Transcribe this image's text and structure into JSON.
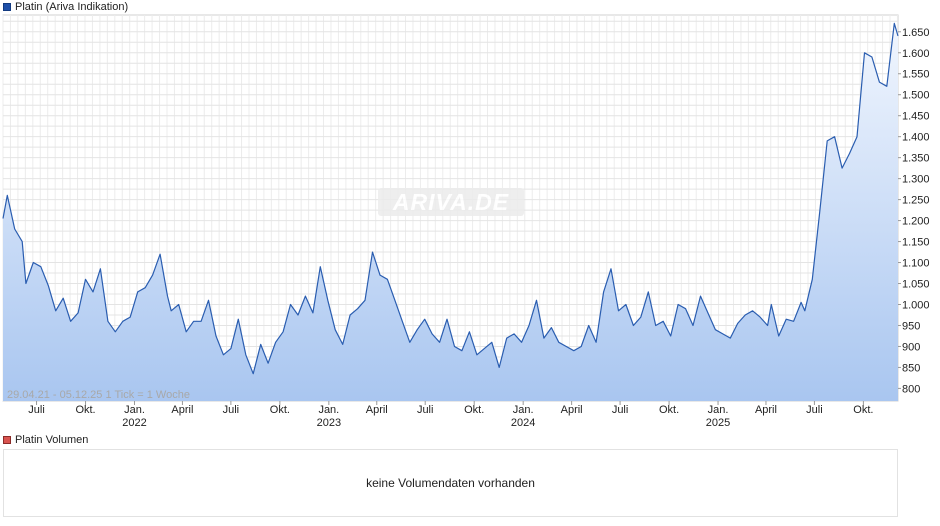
{
  "legend": {
    "price_label": "Platin (Ariva Indikation)",
    "price_color": "#1e4fa8",
    "volume_label": "Platin Volumen",
    "volume_color": "#d9534f"
  },
  "watermark": "ARIVA.DE",
  "range_note": "29.04.21 - 05.12.25     1 Tick = 1 Woche",
  "volume": {
    "message": "keine Volumendaten vorhanden"
  },
  "colors": {
    "line": "#2a5db0",
    "fill_top": "#f1f6fe",
    "fill_bottom": "#a9c6f0",
    "grid": "#dcdcdc"
  },
  "chart_data": {
    "type": "area",
    "title": "Platin (Ariva Indikation)",
    "xlabel": "",
    "ylabel": "",
    "x_range": [
      "2021-04-29",
      "2025-12-05"
    ],
    "ylim": [
      770,
      1690
    ],
    "yticks": [
      800,
      850,
      900,
      950,
      1000,
      1050,
      1100,
      1150,
      1200,
      1250,
      1300,
      1350,
      1400,
      1450,
      1500,
      1550,
      1600,
      1650
    ],
    "ytick_labels": [
      "800",
      "850",
      "900",
      "950",
      "1.000",
      "1.050",
      "1.100",
      "1.150",
      "1.200",
      "1.250",
      "1.300",
      "1.350",
      "1.400",
      "1.450",
      "1.500",
      "1.550",
      "1.600",
      "1.650"
    ],
    "xticks": [
      {
        "date": "2021-07-01",
        "label": "Juli",
        "year": ""
      },
      {
        "date": "2021-10-01",
        "label": "Okt.",
        "year": ""
      },
      {
        "date": "2022-01-01",
        "label": "Jan.",
        "year": "2022"
      },
      {
        "date": "2022-04-01",
        "label": "April",
        "year": ""
      },
      {
        "date": "2022-07-01",
        "label": "Juli",
        "year": ""
      },
      {
        "date": "2022-10-01",
        "label": "Okt.",
        "year": ""
      },
      {
        "date": "2023-01-01",
        "label": "Jan.",
        "year": "2023"
      },
      {
        "date": "2023-04-01",
        "label": "April",
        "year": ""
      },
      {
        "date": "2023-07-01",
        "label": "Juli",
        "year": ""
      },
      {
        "date": "2023-10-01",
        "label": "Okt.",
        "year": ""
      },
      {
        "date": "2024-01-01",
        "label": "Jan.",
        "year": "2024"
      },
      {
        "date": "2024-04-01",
        "label": "April",
        "year": ""
      },
      {
        "date": "2024-07-01",
        "label": "Juli",
        "year": ""
      },
      {
        "date": "2024-10-01",
        "label": "Okt.",
        "year": ""
      },
      {
        "date": "2025-01-01",
        "label": "Jan.",
        "year": "2025"
      },
      {
        "date": "2025-04-01",
        "label": "April",
        "year": ""
      },
      {
        "date": "2025-07-01",
        "label": "Juli",
        "year": ""
      },
      {
        "date": "2025-10-01",
        "label": "Okt.",
        "year": ""
      }
    ],
    "grid": true,
    "series": [
      {
        "name": "Platin (Ariva Indikation)",
        "x": [
          "2021-04-29",
          "2021-05-07",
          "2021-05-21",
          "2021-06-04",
          "2021-06-11",
          "2021-06-25",
          "2021-07-09",
          "2021-07-23",
          "2021-08-06",
          "2021-08-20",
          "2021-09-03",
          "2021-09-17",
          "2021-10-01",
          "2021-10-15",
          "2021-10-29",
          "2021-11-12",
          "2021-11-26",
          "2021-12-10",
          "2021-12-24",
          "2022-01-07",
          "2022-01-21",
          "2022-02-04",
          "2022-02-18",
          "2022-03-04",
          "2022-03-11",
          "2022-03-25",
          "2022-04-08",
          "2022-04-22",
          "2022-05-06",
          "2022-05-20",
          "2022-06-03",
          "2022-06-17",
          "2022-07-01",
          "2022-07-15",
          "2022-07-29",
          "2022-08-12",
          "2022-08-26",
          "2022-09-09",
          "2022-09-23",
          "2022-10-07",
          "2022-10-21",
          "2022-11-04",
          "2022-11-18",
          "2022-12-02",
          "2022-12-16",
          "2022-12-30",
          "2023-01-13",
          "2023-01-27",
          "2023-02-10",
          "2023-02-24",
          "2023-03-10",
          "2023-03-24",
          "2023-04-07",
          "2023-04-21",
          "2023-05-05",
          "2023-05-19",
          "2023-06-02",
          "2023-06-16",
          "2023-06-30",
          "2023-07-14",
          "2023-07-28",
          "2023-08-11",
          "2023-08-25",
          "2023-09-08",
          "2023-09-22",
          "2023-10-06",
          "2023-10-20",
          "2023-11-03",
          "2023-11-17",
          "2023-12-01",
          "2023-12-15",
          "2023-12-29",
          "2024-01-12",
          "2024-01-26",
          "2024-02-09",
          "2024-02-23",
          "2024-03-08",
          "2024-03-22",
          "2024-04-05",
          "2024-04-19",
          "2024-05-03",
          "2024-05-17",
          "2024-05-31",
          "2024-06-14",
          "2024-06-28",
          "2024-07-12",
          "2024-07-26",
          "2024-08-09",
          "2024-08-23",
          "2024-09-06",
          "2024-09-20",
          "2024-10-04",
          "2024-10-18",
          "2024-11-01",
          "2024-11-15",
          "2024-11-29",
          "2024-12-13",
          "2024-12-27",
          "2025-01-10",
          "2025-01-24",
          "2025-02-07",
          "2025-02-21",
          "2025-03-07",
          "2025-03-21",
          "2025-04-04",
          "2025-04-11",
          "2025-04-25",
          "2025-05-09",
          "2025-05-23",
          "2025-06-06",
          "2025-06-13",
          "2025-06-27",
          "2025-07-11",
          "2025-07-25",
          "2025-08-08",
          "2025-08-22",
          "2025-09-05",
          "2025-09-19",
          "2025-10-03",
          "2025-10-17",
          "2025-10-31",
          "2025-11-14",
          "2025-11-28",
          "2025-12-05"
        ],
        "values": [
          1205,
          1260,
          1180,
          1150,
          1050,
          1100,
          1090,
          1045,
          985,
          1015,
          960,
          980,
          1060,
          1030,
          1085,
          960,
          935,
          960,
          970,
          1030,
          1040,
          1070,
          1120,
          1020,
          985,
          1000,
          935,
          960,
          960,
          1010,
          925,
          880,
          895,
          965,
          880,
          835,
          905,
          860,
          910,
          935,
          1000,
          975,
          1020,
          980,
          1090,
          1010,
          940,
          905,
          975,
          990,
          1010,
          1125,
          1070,
          1060,
          1010,
          960,
          910,
          940,
          965,
          930,
          910,
          965,
          900,
          890,
          935,
          880,
          895,
          910,
          850,
          920,
          930,
          910,
          950,
          1010,
          920,
          945,
          910,
          900,
          890,
          900,
          950,
          910,
          1030,
          1085,
          985,
          1000,
          950,
          970,
          1030,
          950,
          960,
          925,
          1000,
          990,
          950,
          1020,
          980,
          940,
          930,
          920,
          955,
          975,
          985,
          970,
          950,
          1000,
          925,
          965,
          960,
          1005,
          985,
          1060,
          1220,
          1390,
          1400,
          1325,
          1360,
          1400,
          1600,
          1590,
          1530,
          1520,
          1670,
          1640
        ]
      }
    ]
  }
}
